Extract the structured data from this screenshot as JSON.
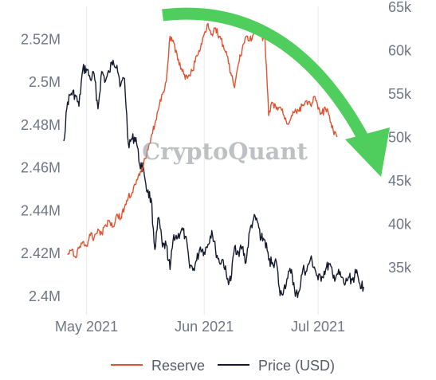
{
  "chart_data": {
    "type": "line",
    "title": "",
    "xlabel": "",
    "watermark": "CryptoQuant",
    "x_range": [
      "2021-04-25",
      "2021-07-18"
    ],
    "x_ticks": [
      {
        "date": "2021-05-01",
        "label": "May 2021"
      },
      {
        "date": "2021-06-01",
        "label": "Jun 2021"
      },
      {
        "date": "2021-07-01",
        "label": "Jul 2021"
      }
    ],
    "y_left": {
      "label": "",
      "range": [
        2.391,
        2.535
      ],
      "ticks": [
        {
          "value": 2.4,
          "label": "2.4M"
        },
        {
          "value": 2.42,
          "label": "2.42M"
        },
        {
          "value": 2.44,
          "label": "2.44M"
        },
        {
          "value": 2.46,
          "label": "2.46M"
        },
        {
          "value": 2.48,
          "label": "2.48M"
        },
        {
          "value": 2.5,
          "label": "2.5M"
        },
        {
          "value": 2.52,
          "label": "2.52M"
        }
      ]
    },
    "y_right": {
      "label": "",
      "range": [
        29500,
        65000
      ],
      "ticks": [
        {
          "value": 35000,
          "label": "35k"
        },
        {
          "value": 40000,
          "label": "40k"
        },
        {
          "value": 45000,
          "label": "45k"
        },
        {
          "value": 50000,
          "label": "50k"
        },
        {
          "value": 55000,
          "label": "55k"
        },
        {
          "value": 60000,
          "label": "60k"
        },
        {
          "value": 65000,
          "label": "65k"
        }
      ]
    },
    "grid": "vertical lines at x ticks",
    "legend_position": "bottom-center",
    "colors": {
      "reserve": "#e0522f",
      "price": "#141a2e",
      "arrow": "#4fce5d",
      "grid": "#e8e8e8"
    },
    "annotation": {
      "type": "curved-arrow",
      "color": "#4fce5d",
      "direction": "downward-right"
    },
    "series": [
      {
        "name": "Reserve",
        "axis": "left",
        "unit": "M",
        "points": [
          [
            "2021-04-26",
            2.419
          ],
          [
            "2021-04-27",
            2.421
          ],
          [
            "2021-04-28",
            2.418
          ],
          [
            "2021-04-29",
            2.422
          ],
          [
            "2021-04-30",
            2.425
          ],
          [
            "2021-05-01",
            2.423
          ],
          [
            "2021-05-02",
            2.428
          ],
          [
            "2021-05-03",
            2.427
          ],
          [
            "2021-05-04",
            2.431
          ],
          [
            "2021-05-05",
            2.429
          ],
          [
            "2021-05-06",
            2.433
          ],
          [
            "2021-05-07",
            2.435
          ],
          [
            "2021-05-08",
            2.432
          ],
          [
            "2021-05-09",
            2.438
          ],
          [
            "2021-05-10",
            2.436
          ],
          [
            "2021-05-11",
            2.441
          ],
          [
            "2021-05-12",
            2.446
          ],
          [
            "2021-05-13",
            2.448
          ],
          [
            "2021-05-14",
            2.452
          ],
          [
            "2021-05-15",
            2.456
          ],
          [
            "2021-05-16",
            2.461
          ],
          [
            "2021-05-17",
            2.468
          ],
          [
            "2021-05-18",
            2.474
          ],
          [
            "2021-05-19",
            2.48
          ],
          [
            "2021-05-20",
            2.487
          ],
          [
            "2021-05-21",
            2.494
          ],
          [
            "2021-05-22",
            2.5
          ],
          [
            "2021-05-23",
            2.521
          ],
          [
            "2021-05-24",
            2.518
          ],
          [
            "2021-05-25",
            2.51
          ],
          [
            "2021-05-26",
            2.506
          ],
          [
            "2021-05-27",
            2.501
          ],
          [
            "2021-05-28",
            2.503
          ],
          [
            "2021-05-29",
            2.505
          ],
          [
            "2021-05-30",
            2.512
          ],
          [
            "2021-05-31",
            2.515
          ],
          [
            "2021-06-01",
            2.522
          ],
          [
            "2021-06-02",
            2.527
          ],
          [
            "2021-06-03",
            2.522
          ],
          [
            "2021-06-04",
            2.525
          ],
          [
            "2021-06-05",
            2.521
          ],
          [
            "2021-06-06",
            2.517
          ],
          [
            "2021-06-07",
            2.512
          ],
          [
            "2021-06-08",
            2.504
          ],
          [
            "2021-06-09",
            2.497
          ],
          [
            "2021-06-10",
            2.508
          ],
          [
            "2021-06-11",
            2.515
          ],
          [
            "2021-06-12",
            2.521
          ],
          [
            "2021-06-13",
            2.519
          ],
          [
            "2021-06-14",
            2.522
          ],
          [
            "2021-06-15",
            2.524
          ],
          [
            "2021-06-16",
            2.521
          ],
          [
            "2021-06-17",
            2.52
          ],
          [
            "2021-06-18",
            2.484
          ],
          [
            "2021-06-19",
            2.49
          ],
          [
            "2021-06-20",
            2.487
          ],
          [
            "2021-06-21",
            2.488
          ],
          [
            "2021-06-22",
            2.484
          ],
          [
            "2021-06-23",
            2.48
          ],
          [
            "2021-06-24",
            2.484
          ],
          [
            "2021-06-25",
            2.487
          ],
          [
            "2021-06-26",
            2.486
          ],
          [
            "2021-06-27",
            2.489
          ],
          [
            "2021-06-28",
            2.491
          ],
          [
            "2021-06-29",
            2.489
          ],
          [
            "2021-06-30",
            2.493
          ],
          [
            "2021-07-01",
            2.487
          ],
          [
            "2021-07-02",
            2.485
          ],
          [
            "2021-07-03",
            2.487
          ],
          [
            "2021-07-04",
            2.484
          ],
          [
            "2021-07-05",
            2.477
          ],
          [
            "2021-07-06",
            2.474
          ]
        ]
      },
      {
        "name": "Price (USD)",
        "axis": "right",
        "unit": "USD",
        "points": [
          [
            "2021-04-25",
            49500
          ],
          [
            "2021-04-26",
            54000
          ],
          [
            "2021-04-27",
            55000
          ],
          [
            "2021-04-28",
            54800
          ],
          [
            "2021-04-29",
            53500
          ],
          [
            "2021-04-30",
            57700
          ],
          [
            "2021-05-01",
            57800
          ],
          [
            "2021-05-02",
            56600
          ],
          [
            "2021-05-03",
            57200
          ],
          [
            "2021-05-04",
            53200
          ],
          [
            "2021-05-05",
            57500
          ],
          [
            "2021-05-06",
            56400
          ],
          [
            "2021-05-07",
            57400
          ],
          [
            "2021-05-08",
            58800
          ],
          [
            "2021-05-09",
            58200
          ],
          [
            "2021-05-10",
            55900
          ],
          [
            "2021-05-11",
            56700
          ],
          [
            "2021-05-12",
            49200
          ],
          [
            "2021-05-13",
            49700
          ],
          [
            "2021-05-14",
            49900
          ],
          [
            "2021-05-15",
            46800
          ],
          [
            "2021-05-16",
            46400
          ],
          [
            "2021-05-17",
            43600
          ],
          [
            "2021-05-18",
            42900
          ],
          [
            "2021-05-19",
            37000
          ],
          [
            "2021-05-20",
            40700
          ],
          [
            "2021-05-21",
            37300
          ],
          [
            "2021-05-22",
            37500
          ],
          [
            "2021-05-23",
            34700
          ],
          [
            "2021-05-24",
            38700
          ],
          [
            "2021-05-25",
            38400
          ],
          [
            "2021-05-26",
            39300
          ],
          [
            "2021-05-27",
            38500
          ],
          [
            "2021-05-28",
            35700
          ],
          [
            "2021-05-29",
            34600
          ],
          [
            "2021-05-30",
            35700
          ],
          [
            "2021-05-31",
            37300
          ],
          [
            "2021-06-01",
            36700
          ],
          [
            "2021-06-02",
            37600
          ],
          [
            "2021-06-03",
            39200
          ],
          [
            "2021-06-04",
            36900
          ],
          [
            "2021-06-05",
            35500
          ],
          [
            "2021-06-06",
            35800
          ],
          [
            "2021-06-07",
            33600
          ],
          [
            "2021-06-08",
            33400
          ],
          [
            "2021-06-09",
            37300
          ],
          [
            "2021-06-10",
            36700
          ],
          [
            "2021-06-11",
            37300
          ],
          [
            "2021-06-12",
            35500
          ],
          [
            "2021-06-13",
            39100
          ],
          [
            "2021-06-14",
            40500
          ],
          [
            "2021-06-15",
            40200
          ],
          [
            "2021-06-16",
            38300
          ],
          [
            "2021-06-17",
            38100
          ],
          [
            "2021-06-18",
            35800
          ],
          [
            "2021-06-19",
            35500
          ],
          [
            "2021-06-20",
            35600
          ],
          [
            "2021-06-21",
            31700
          ],
          [
            "2021-06-22",
            32500
          ],
          [
            "2021-06-23",
            33700
          ],
          [
            "2021-06-24",
            34700
          ],
          [
            "2021-06-25",
            31600
          ],
          [
            "2021-06-26",
            32200
          ],
          [
            "2021-06-27",
            34700
          ],
          [
            "2021-06-28",
            34500
          ],
          [
            "2021-06-29",
            35900
          ],
          [
            "2021-06-30",
            35000
          ],
          [
            "2021-07-01",
            33500
          ],
          [
            "2021-07-02",
            33900
          ],
          [
            "2021-07-03",
            34700
          ],
          [
            "2021-07-04",
            35300
          ],
          [
            "2021-07-05",
            33700
          ],
          [
            "2021-07-06",
            34200
          ],
          [
            "2021-07-07",
            33900
          ],
          [
            "2021-07-08",
            32900
          ],
          [
            "2021-07-09",
            33800
          ],
          [
            "2021-07-10",
            33500
          ],
          [
            "2021-07-11",
            34300
          ],
          [
            "2021-07-12",
            33100
          ],
          [
            "2021-07-13",
            32700
          ]
        ]
      }
    ]
  }
}
